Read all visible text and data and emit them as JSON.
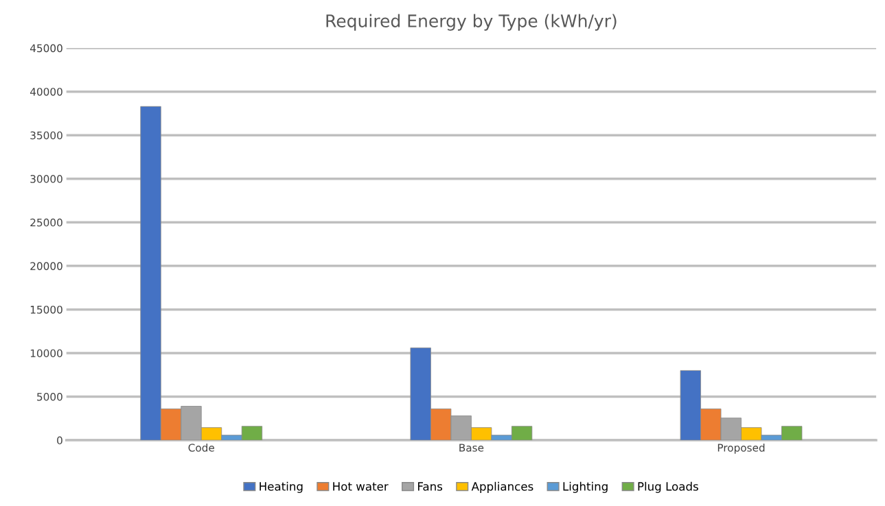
{
  "chart_data": {
    "type": "bar",
    "title": "Required Energy by Type (kWh/yr)",
    "categories": [
      "Code",
      "Base",
      "Proposed"
    ],
    "series": [
      {
        "name": "Heating",
        "color": "#4472c4",
        "values": [
          38300,
          10600,
          8000
        ]
      },
      {
        "name": "Hot water",
        "color": "#ed7d31",
        "values": [
          3600,
          3600,
          3600
        ]
      },
      {
        "name": "Fans",
        "color": "#a5a5a5",
        "values": [
          3900,
          2800,
          2550
        ]
      },
      {
        "name": "Appliances",
        "color": "#ffc000",
        "values": [
          1450,
          1450,
          1450
        ]
      },
      {
        "name": "Lighting",
        "color": "#5b9bd5",
        "values": [
          580,
          580,
          580
        ]
      },
      {
        "name": "Plug Loads",
        "color": "#70ad47",
        "values": [
          1600,
          1600,
          1600
        ]
      }
    ],
    "ylim": [
      0,
      45000
    ],
    "yticks": [
      0,
      5000,
      10000,
      15000,
      20000,
      25000,
      30000,
      35000,
      40000,
      45000
    ],
    "grid": "y",
    "legend": "bottom"
  }
}
